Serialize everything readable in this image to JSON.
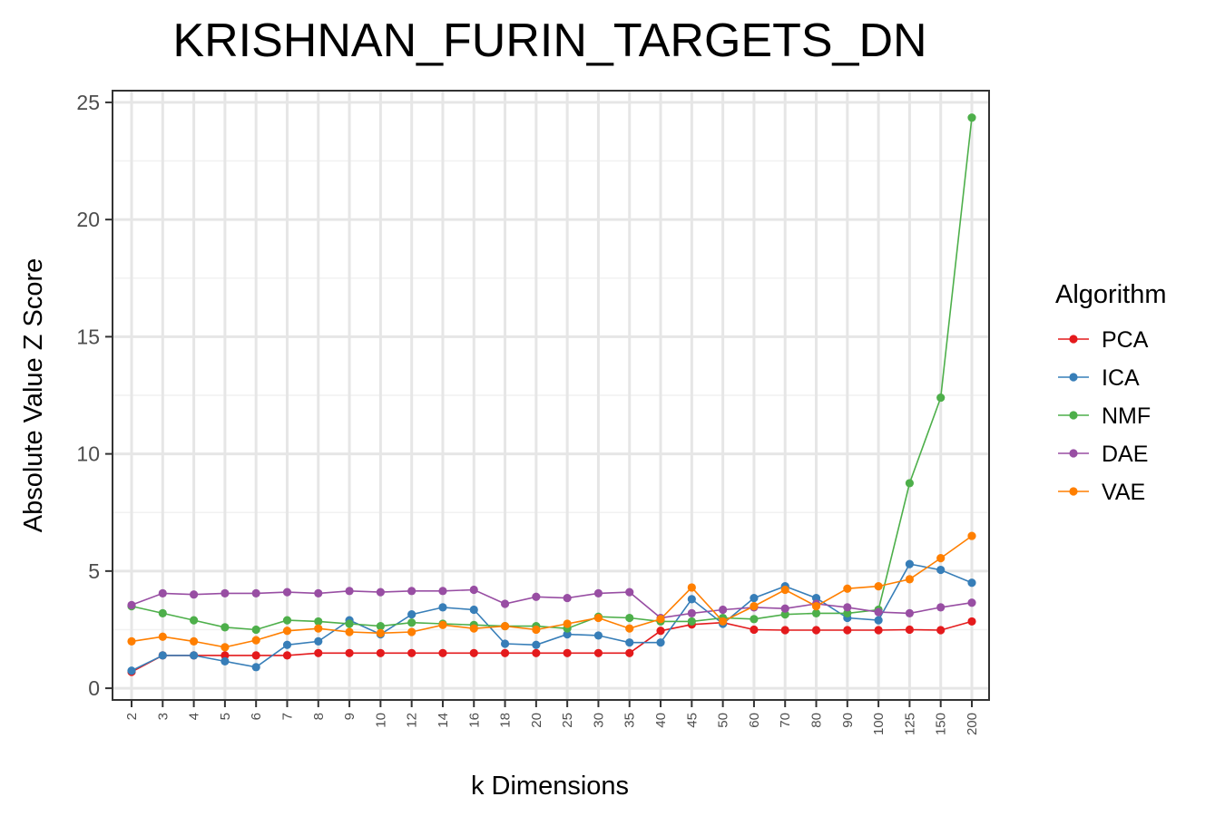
{
  "chart_data": {
    "type": "line",
    "title": "KRISHNAN_FURIN_TARGETS_DN",
    "xlabel": "k Dimensions",
    "ylabel": "Absolute Value Z Score",
    "categories": [
      "2",
      "3",
      "4",
      "5",
      "6",
      "7",
      "8",
      "9",
      "10",
      "12",
      "14",
      "16",
      "18",
      "20",
      "25",
      "30",
      "35",
      "40",
      "45",
      "50",
      "60",
      "70",
      "80",
      "90",
      "100",
      "125",
      "150",
      "200"
    ],
    "ylim": [
      -0.5,
      25.5
    ],
    "yticks": [
      0,
      5,
      10,
      15,
      20,
      25
    ],
    "grid": true,
    "legend_position": "right",
    "legend_title": "Algorithm",
    "series": [
      {
        "name": "PCA",
        "color": "#e41a1c",
        "values": [
          0.7,
          1.4,
          1.4,
          1.4,
          1.4,
          1.4,
          1.5,
          1.5,
          1.5,
          1.5,
          1.5,
          1.5,
          1.5,
          1.5,
          1.5,
          1.5,
          1.5,
          2.45,
          2.72,
          2.8,
          2.5,
          2.48,
          2.48,
          2.48,
          2.48,
          2.5,
          2.48,
          2.85
        ]
      },
      {
        "name": "ICA",
        "color": "#377eb8",
        "values": [
          0.75,
          1.4,
          1.4,
          1.15,
          0.9,
          1.85,
          2.0,
          2.9,
          2.3,
          3.15,
          3.45,
          3.35,
          1.9,
          1.85,
          2.3,
          2.25,
          1.95,
          1.95,
          3.8,
          2.75,
          3.85,
          4.35,
          3.85,
          3.0,
          2.9,
          5.3,
          5.05,
          4.5
        ]
      },
      {
        "name": "NMF",
        "color": "#4daf4a",
        "values": [
          3.5,
          3.2,
          2.9,
          2.6,
          2.5,
          2.9,
          2.85,
          2.75,
          2.65,
          2.8,
          2.75,
          2.7,
          2.65,
          2.65,
          2.55,
          3.05,
          3.0,
          2.85,
          2.85,
          3.0,
          2.95,
          3.15,
          3.2,
          3.2,
          3.35,
          8.75,
          12.4,
          24.35
        ]
      },
      {
        "name": "DAE",
        "color": "#984ea3",
        "values": [
          3.55,
          4.05,
          4.0,
          4.05,
          4.05,
          4.1,
          4.05,
          4.15,
          4.1,
          4.15,
          4.15,
          4.2,
          3.6,
          3.9,
          3.85,
          4.05,
          4.1,
          3.0,
          3.2,
          3.35,
          3.45,
          3.4,
          3.6,
          3.45,
          3.25,
          3.2,
          3.45,
          3.65
        ]
      },
      {
        "name": "VAE",
        "color": "#ff7f00",
        "values": [
          2.0,
          2.2,
          2.0,
          1.75,
          2.05,
          2.45,
          2.55,
          2.4,
          2.35,
          2.4,
          2.7,
          2.55,
          2.65,
          2.5,
          2.75,
          3.0,
          2.55,
          2.95,
          4.3,
          2.85,
          3.5,
          4.2,
          3.5,
          4.25,
          4.35,
          4.65,
          5.55,
          6.5
        ]
      }
    ]
  }
}
